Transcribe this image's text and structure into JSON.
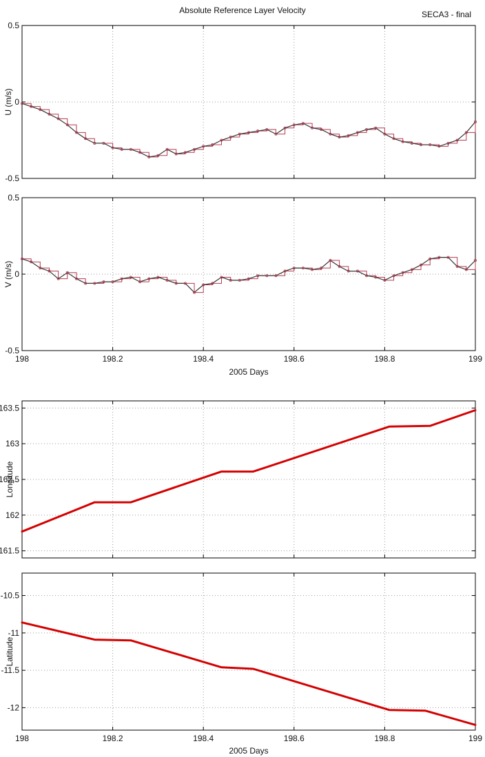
{
  "header": {
    "title": "Absolute Reference Layer Velocity",
    "tag": "SECA3 - final"
  },
  "colors": {
    "velocity_line": "#333333",
    "velocity_marker": "#b23a4f",
    "track_line": "#d40000",
    "grid": "#9a9a9a"
  },
  "chart_data": [
    {
      "type": "line",
      "title": "Absolute Reference Layer Velocity",
      "xlabel": "",
      "ylabel": "U (m/s)",
      "xlim": [
        198,
        199
      ],
      "ylim": [
        -0.5,
        0.5
      ],
      "xticks": [
        198,
        198.2,
        198.4,
        198.6,
        198.8,
        199
      ],
      "xtick_labels": [],
      "yticks": [
        -0.5,
        0,
        0.5
      ],
      "ytick_labels": [
        "-0.5",
        "0",
        "0.5"
      ],
      "grid": true,
      "series": [
        {
          "x": [
            198.0,
            198.02,
            198.04,
            198.06,
            198.08,
            198.1,
            198.12,
            198.14,
            198.16,
            198.18,
            198.2,
            198.22,
            198.24,
            198.26,
            198.28,
            198.3,
            198.32,
            198.34,
            198.36,
            198.38,
            198.4,
            198.42,
            198.44,
            198.46,
            198.48,
            198.5,
            198.52,
            198.54,
            198.56,
            198.58,
            198.6,
            198.62,
            198.64,
            198.66,
            198.68,
            198.7,
            198.72,
            198.74,
            198.76,
            198.78,
            198.8,
            198.82,
            198.84,
            198.86,
            198.88,
            198.9,
            198.92,
            198.94,
            198.96,
            198.98,
            199.0
          ],
          "y": [
            -0.01,
            -0.03,
            -0.05,
            -0.08,
            -0.11,
            -0.15,
            -0.2,
            -0.24,
            -0.27,
            -0.27,
            -0.3,
            -0.31,
            -0.31,
            -0.33,
            -0.36,
            -0.35,
            -0.31,
            -0.34,
            -0.33,
            -0.31,
            -0.29,
            -0.28,
            -0.25,
            -0.23,
            -0.21,
            -0.2,
            -0.19,
            -0.18,
            -0.21,
            -0.17,
            -0.15,
            -0.14,
            -0.17,
            -0.18,
            -0.21,
            -0.23,
            -0.22,
            -0.2,
            -0.18,
            -0.17,
            -0.21,
            -0.24,
            -0.26,
            -0.27,
            -0.28,
            -0.28,
            -0.29,
            -0.27,
            -0.25,
            -0.2,
            -0.13
          ]
        }
      ]
    },
    {
      "type": "line",
      "xlabel": "2005 Days",
      "ylabel": "V (m/s)",
      "xlim": [
        198,
        199
      ],
      "ylim": [
        -0.5,
        0.5
      ],
      "xticks": [
        198,
        198.2,
        198.4,
        198.6,
        198.8,
        199
      ],
      "xtick_labels": [
        "198",
        "198.2",
        "198.4",
        "198.6",
        "198.8",
        "199"
      ],
      "yticks": [
        -0.5,
        0,
        0.5
      ],
      "ytick_labels": [
        "-0.5",
        "0",
        "0.5"
      ],
      "grid": true,
      "series": [
        {
          "x": [
            198.0,
            198.02,
            198.04,
            198.06,
            198.08,
            198.1,
            198.12,
            198.14,
            198.16,
            198.18,
            198.2,
            198.22,
            198.24,
            198.26,
            198.28,
            198.3,
            198.32,
            198.34,
            198.36,
            198.38,
            198.4,
            198.42,
            198.44,
            198.46,
            198.48,
            198.5,
            198.52,
            198.54,
            198.56,
            198.58,
            198.6,
            198.62,
            198.64,
            198.66,
            198.68,
            198.7,
            198.72,
            198.74,
            198.76,
            198.78,
            198.8,
            198.82,
            198.84,
            198.86,
            198.88,
            198.9,
            198.92,
            198.94,
            198.96,
            198.98,
            199.0
          ],
          "y": [
            0.1,
            0.08,
            0.04,
            0.02,
            -0.03,
            0.01,
            -0.03,
            -0.06,
            -0.06,
            -0.05,
            -0.05,
            -0.03,
            -0.02,
            -0.05,
            -0.03,
            -0.02,
            -0.04,
            -0.06,
            -0.06,
            -0.12,
            -0.07,
            -0.06,
            -0.02,
            -0.04,
            -0.04,
            -0.03,
            -0.01,
            -0.01,
            -0.01,
            0.02,
            0.04,
            0.04,
            0.03,
            0.04,
            0.09,
            0.05,
            0.02,
            0.02,
            -0.01,
            -0.02,
            -0.04,
            -0.01,
            0.01,
            0.03,
            0.06,
            0.1,
            0.11,
            0.11,
            0.05,
            0.03,
            0.09
          ]
        }
      ]
    },
    {
      "type": "line",
      "xlabel": "",
      "ylabel": "Longitude",
      "xlim": [
        198,
        199
      ],
      "ylim": [
        161.4,
        163.6
      ],
      "xticks": [
        198,
        198.2,
        198.4,
        198.6,
        198.8,
        199
      ],
      "xtick_labels": [],
      "yticks": [
        161.5,
        162,
        162.5,
        163,
        163.5
      ],
      "ytick_labels": [
        "161.5",
        "162",
        "162.5",
        "163",
        "163.5"
      ],
      "grid": true,
      "series": [
        {
          "x": [
            198.0,
            198.16,
            198.24,
            198.44,
            198.51,
            198.81,
            198.9,
            199.0
          ],
          "y": [
            161.77,
            162.18,
            162.18,
            162.61,
            162.61,
            163.24,
            163.25,
            163.47
          ]
        }
      ]
    },
    {
      "type": "line",
      "xlabel": "2005 Days",
      "ylabel": "Latitude",
      "xlim": [
        198,
        199
      ],
      "ylim": [
        -12.3,
        -10.2
      ],
      "xticks": [
        198,
        198.2,
        198.4,
        198.6,
        198.8,
        199
      ],
      "xtick_labels": [
        "198",
        "198.2",
        "198.4",
        "198.6",
        "198.8",
        "199"
      ],
      "yticks": [
        -12,
        -11.5,
        -11,
        -10.5
      ],
      "ytick_labels": [
        "-12",
        "-11.5",
        "-11",
        "-10.5"
      ],
      "grid": true,
      "series": [
        {
          "x": [
            198.0,
            198.16,
            198.24,
            198.44,
            198.51,
            198.81,
            198.89,
            199.0
          ],
          "y": [
            -10.86,
            -11.09,
            -11.1,
            -11.46,
            -11.48,
            -12.03,
            -12.04,
            -12.23
          ]
        }
      ]
    }
  ]
}
